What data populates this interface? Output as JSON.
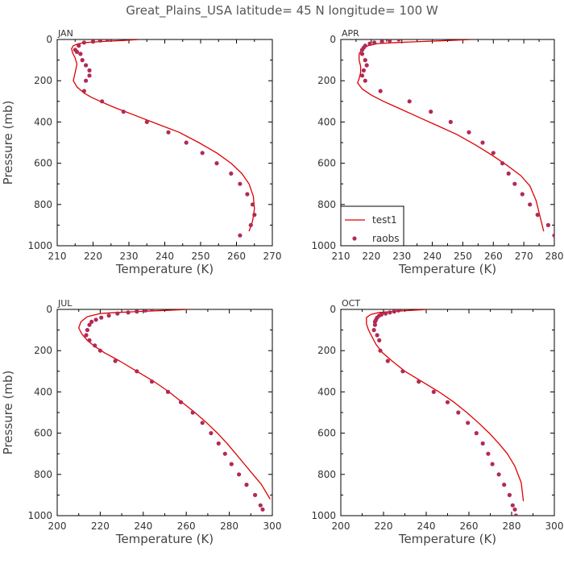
{
  "title": "Great_Plains_USA  latitude= 45 N longitude= 100 W",
  "colors": {
    "model_line": "#dd0000",
    "obs_marker": "#b22a55"
  },
  "legend": {
    "location": "lower-left of APR panel",
    "entries": [
      "test1",
      "raobs"
    ]
  },
  "chart_data": [
    {
      "type": "line",
      "panel": "JAN",
      "xlabel": "Temperature (K)",
      "ylabel": "Pressure (mb)",
      "xlim": [
        210,
        270
      ],
      "ylim": [
        1000,
        0
      ],
      "xticks": [
        210,
        220,
        230,
        240,
        250,
        260,
        270
      ],
      "yticks": [
        0,
        200,
        400,
        600,
        800,
        1000
      ],
      "series": [
        {
          "name": "test1",
          "style": "line",
          "x": [
            233,
            228,
            222,
            218,
            216,
            214.5,
            214,
            214.3,
            215,
            215.5,
            215,
            214.5,
            215.5,
            217.5,
            219.5,
            222,
            226,
            232,
            238,
            244,
            249.5,
            254.5,
            258.5,
            261.5,
            263.5,
            264.7,
            265,
            264.5,
            263.5
          ],
          "y": [
            0,
            5,
            10,
            15,
            20,
            30,
            45,
            65,
            90,
            120,
            160,
            200,
            230,
            260,
            280,
            300,
            330,
            370,
            410,
            450,
            500,
            550,
            600,
            650,
            700,
            760,
            820,
            880,
            930
          ]
        },
        {
          "name": "raobs",
          "style": "marker",
          "x": [
            224,
            222,
            220,
            217.5,
            216,
            215,
            215.5,
            216.5,
            217,
            218,
            219,
            219,
            218,
            217.5,
            222.5,
            228.5,
            235,
            241,
            246,
            250.5,
            254.5,
            258.5,
            261,
            263,
            264.5,
            265,
            264,
            261
          ],
          "y": [
            0,
            5,
            10,
            15,
            30,
            50,
            60,
            70,
            100,
            125,
            150,
            175,
            200,
            250,
            300,
            350,
            400,
            450,
            500,
            550,
            600,
            650,
            700,
            750,
            800,
            850,
            900,
            950
          ]
        }
      ]
    },
    {
      "type": "line",
      "panel": "APR",
      "xlabel": "Temperature (K)",
      "ylabel": "",
      "xlim": [
        210,
        280
      ],
      "ylim": [
        1000,
        0
      ],
      "xticks": [
        210,
        220,
        230,
        240,
        250,
        260,
        270,
        280
      ],
      "yticks": [
        0,
        200,
        400,
        600,
        800,
        1000
      ],
      "series": [
        {
          "name": "test1",
          "style": "line",
          "x": [
            253,
            245,
            236,
            228,
            222,
            219,
            217,
            216,
            216,
            216.5,
            216.5,
            216,
            215.5,
            217,
            220,
            224,
            230,
            236,
            242,
            248,
            254,
            259.5,
            264.5,
            269,
            272,
            274,
            276.5
          ],
          "y": [
            0,
            5,
            10,
            15,
            20,
            30,
            45,
            70,
            100,
            130,
            160,
            190,
            210,
            240,
            270,
            300,
            340,
            380,
            420,
            460,
            510,
            560,
            610,
            660,
            710,
            780,
            930
          ]
        },
        {
          "name": "raobs",
          "style": "marker",
          "x": [
            229,
            226,
            223.5,
            221,
            219.5,
            218,
            217.5,
            217,
            217,
            218,
            218.5,
            217.5,
            217,
            218,
            223,
            232.5,
            239.5,
            246,
            252,
            256.5,
            260,
            263,
            265,
            267,
            269.5,
            272,
            274.5,
            278,
            280
          ],
          "y": [
            0,
            5,
            10,
            15,
            20,
            30,
            40,
            50,
            70,
            100,
            125,
            150,
            175,
            200,
            250,
            300,
            350,
            400,
            450,
            500,
            550,
            600,
            650,
            700,
            750,
            800,
            850,
            900,
            950
          ]
        }
      ]
    },
    {
      "type": "line",
      "panel": "JUL",
      "xlabel": "Temperature (K)",
      "ylabel": "Pressure (mb)",
      "xlim": [
        200,
        300
      ],
      "ylim": [
        1000,
        0
      ],
      "xticks": [
        200,
        220,
        240,
        260,
        280,
        300
      ],
      "yticks": [
        0,
        200,
        400,
        600,
        800,
        1000
      ],
      "series": [
        {
          "name": "test1",
          "style": "line",
          "x": [
            261,
            250,
            238,
            228,
            220,
            214,
            211,
            210,
            211.5,
            214,
            217.5,
            222,
            229,
            237,
            245,
            252,
            258,
            264,
            269.5,
            274.5,
            279,
            283,
            287,
            291,
            295,
            299
          ],
          "y": [
            0,
            5,
            10,
            15,
            20,
            35,
            60,
            90,
            120,
            150,
            180,
            210,
            250,
            300,
            350,
            400,
            450,
            500,
            550,
            600,
            650,
            700,
            750,
            800,
            850,
            920
          ]
        },
        {
          "name": "raobs",
          "style": "marker",
          "x": [
            244,
            241,
            237,
            233,
            228,
            224,
            220.5,
            218,
            216,
            215,
            214,
            213.5,
            215,
            217.5,
            220,
            227,
            237,
            244,
            251.5,
            257.5,
            263,
            267.5,
            271.5,
            275,
            278,
            281,
            284.5,
            288,
            292,
            294.5,
            295.5
          ],
          "y": [
            0,
            5,
            10,
            15,
            20,
            30,
            40,
            50,
            60,
            75,
            100,
            125,
            150,
            175,
            200,
            250,
            300,
            350,
            400,
            450,
            500,
            550,
            600,
            650,
            700,
            750,
            800,
            850,
            900,
            950,
            970
          ]
        }
      ]
    },
    {
      "type": "line",
      "panel": "OCT",
      "xlabel": "Temperature (K)",
      "ylabel": "",
      "xlim": [
        200,
        300
      ],
      "ylim": [
        1000,
        0
      ],
      "xticks": [
        200,
        220,
        240,
        260,
        280,
        300
      ],
      "yticks": [
        0,
        200,
        400,
        600,
        800,
        1000
      ],
      "series": [
        {
          "name": "test1",
          "style": "line",
          "x": [
            241,
            232,
            224,
            218,
            214,
            212,
            212,
            213,
            214.5,
            216.5,
            219.5,
            224,
            230,
            238,
            246,
            253,
            259,
            264.5,
            269.5,
            274,
            278,
            281.5,
            284.5,
            285.5
          ],
          "y": [
            0,
            5,
            10,
            15,
            25,
            40,
            70,
            100,
            130,
            170,
            210,
            250,
            300,
            350,
            400,
            450,
            500,
            550,
            600,
            650,
            700,
            760,
            840,
            930
          ]
        },
        {
          "name": "raobs",
          "style": "marker",
          "x": [
            228,
            227,
            225,
            223,
            221,
            219,
            218,
            217,
            216.5,
            216,
            216,
            215.5,
            217,
            218,
            218.5,
            222,
            229,
            236.5,
            243.5,
            250,
            255,
            259.5,
            263.5,
            266.5,
            269,
            271,
            274,
            276.5,
            279,
            280.5,
            281.5,
            282
          ],
          "y": [
            0,
            5,
            10,
            15,
            20,
            25,
            30,
            40,
            50,
            60,
            75,
            100,
            125,
            150,
            200,
            250,
            300,
            350,
            400,
            450,
            500,
            550,
            600,
            650,
            700,
            750,
            800,
            850,
            900,
            950,
            970,
            1000
          ]
        }
      ]
    }
  ]
}
